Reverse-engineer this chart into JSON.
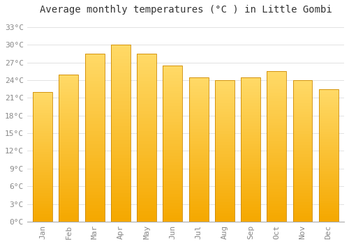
{
  "title": "Average monthly temperatures (°C ) in Little Gombi",
  "months": [
    "Jan",
    "Feb",
    "Mar",
    "Apr",
    "May",
    "Jun",
    "Jul",
    "Aug",
    "Sep",
    "Oct",
    "Nov",
    "Dec"
  ],
  "values": [
    22.0,
    25.0,
    28.5,
    30.0,
    28.5,
    26.5,
    24.5,
    24.0,
    24.5,
    25.5,
    24.0,
    22.5
  ],
  "bar_color_bottom": "#F5A800",
  "bar_color_top": "#FFD966",
  "bar_edge_color": "#CC8800",
  "background_color": "#FFFFFF",
  "plot_bg_color": "#FFFFFF",
  "grid_color": "#DDDDDD",
  "yticks": [
    0,
    3,
    6,
    9,
    12,
    15,
    18,
    21,
    24,
    27,
    30,
    33
  ],
  "ylim": [
    0,
    34.5
  ],
  "title_fontsize": 10,
  "tick_fontsize": 8,
  "tick_color": "#888888",
  "title_color": "#333333",
  "font_family": "monospace",
  "bar_width": 0.75
}
